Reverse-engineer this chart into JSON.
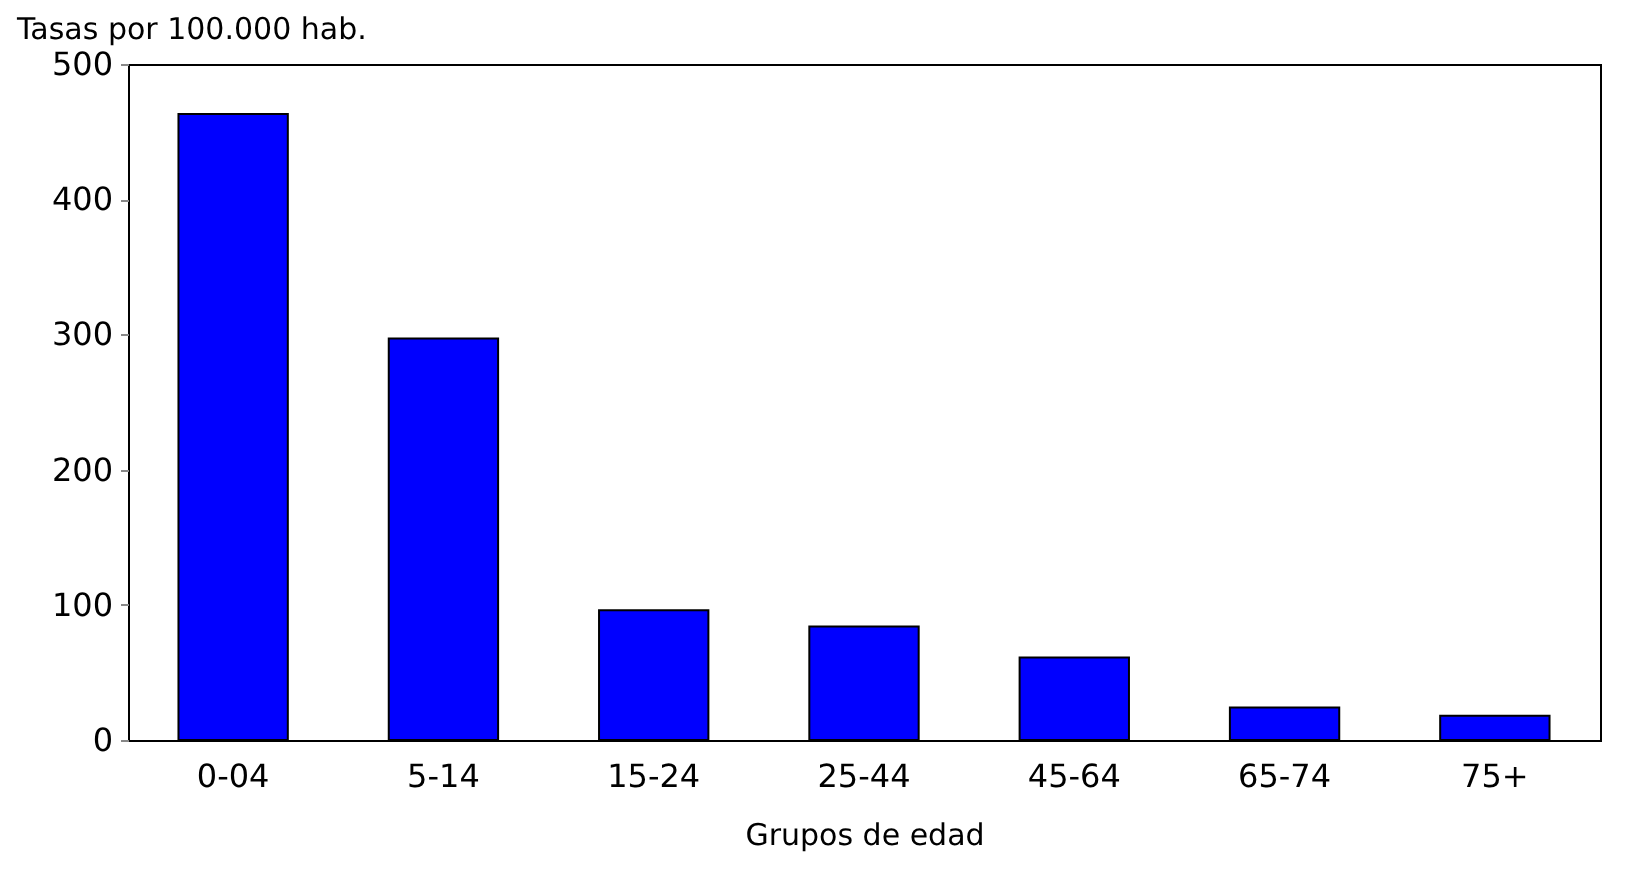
{
  "chart_data": {
    "type": "bar",
    "xlabel": "Grupos de edad",
    "ylabel": "Tasas por 100.000 hab.",
    "categories": [
      "0-04",
      "5-14",
      "15-24",
      "25-44",
      "45-64",
      "65-74",
      "75+"
    ],
    "values": [
      463,
      297,
      96,
      84,
      61,
      24,
      18
    ],
    "color": "#0000ff",
    "ylim": [
      0,
      500
    ],
    "yticks": [
      0,
      100,
      200,
      300,
      400,
      500
    ],
    "grid": false
  }
}
